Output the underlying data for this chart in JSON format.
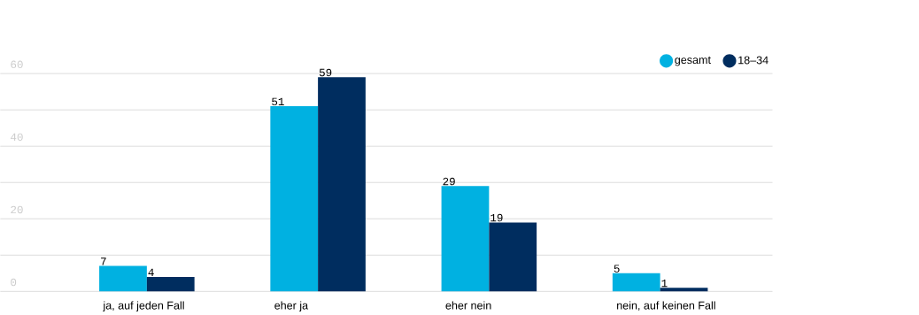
{
  "chart_data": {
    "type": "bar",
    "categories": [
      "ja, auf jeden Fall",
      "eher ja",
      "eher nein",
      "nein, auf keinen Fall"
    ],
    "series": [
      {
        "name": "gesamt",
        "color": "#00b1e1",
        "values": [
          7,
          51,
          29,
          5
        ]
      },
      {
        "name": "18–34",
        "color": "#002d5f",
        "values": [
          4,
          59,
          19,
          1
        ]
      }
    ],
    "ylim": [
      0,
      60
    ],
    "yticks": [
      0,
      {
        "value": 10,
        "label": null
      },
      20,
      {
        "value": 30,
        "label": null
      },
      40,
      {
        "value": 50,
        "label": null
      },
      60
    ],
    "grid": "y",
    "legend": "top right",
    "data_labels": true
  }
}
